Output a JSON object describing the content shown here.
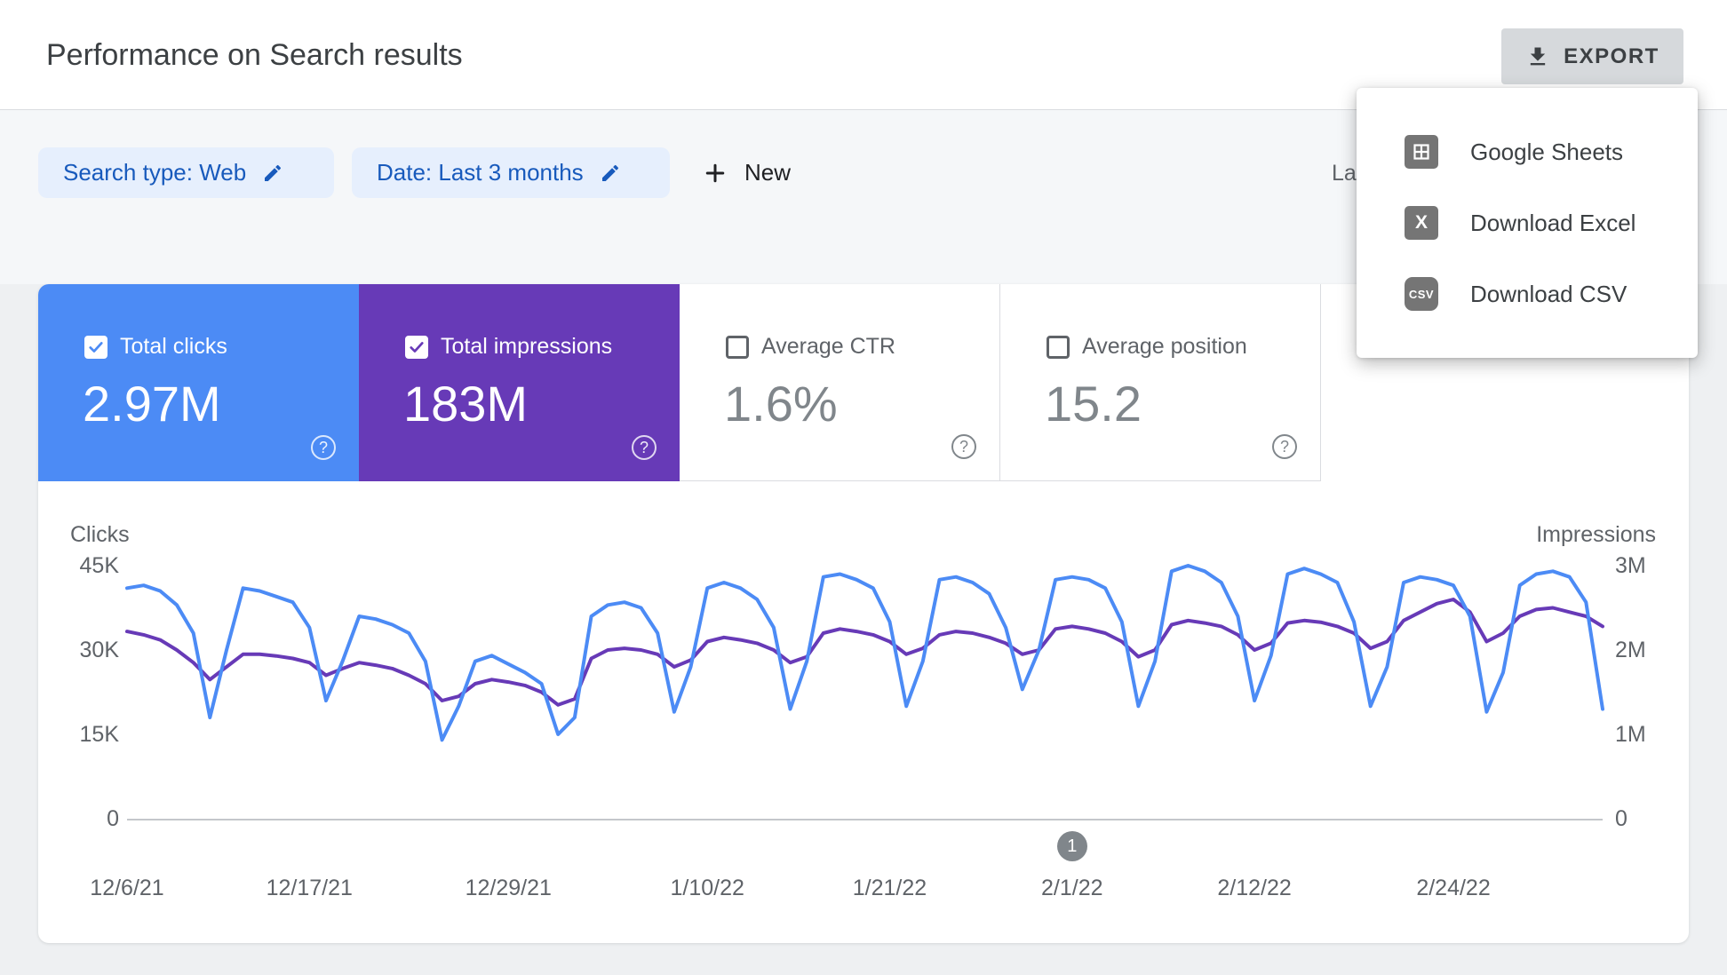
{
  "page": {
    "title": "Performance on Search results"
  },
  "toolbar": {
    "export_label": "EXPORT"
  },
  "filters": {
    "search_type_chip": "Search type: Web",
    "date_chip": "Date: Last 3 months",
    "new_button": "New",
    "last_updated_partial": "La"
  },
  "export_menu": {
    "items": [
      {
        "label": "Google Sheets",
        "icon": "google-sheets-icon",
        "glyph": ""
      },
      {
        "label": "Download Excel",
        "icon": "excel-icon",
        "glyph": "X"
      },
      {
        "label": "Download CSV",
        "icon": "csv-icon",
        "glyph": "CSV"
      }
    ]
  },
  "icons": {
    "help_glyph": "?"
  },
  "metric_cards": [
    {
      "label": "Total clicks",
      "value": "2.97M",
      "selected": true,
      "color": "#4c8bf5"
    },
    {
      "label": "Total impressions",
      "value": "183M",
      "selected": true,
      "color": "#673ab7"
    },
    {
      "label": "Average CTR",
      "value": "1.6%",
      "selected": false,
      "color": "#ffffff"
    },
    {
      "label": "Average position",
      "value": "15.2",
      "selected": false,
      "color": "#ffffff"
    }
  ],
  "chart_data": {
    "type": "line",
    "title": "",
    "grid": false,
    "legend_position": "none",
    "left_axis": {
      "title": "Clicks",
      "max": 45000,
      "ticks": [
        {
          "label": "45K",
          "value": 45000
        },
        {
          "label": "30K",
          "value": 30000
        },
        {
          "label": "15K",
          "value": 15000
        },
        {
          "label": "0",
          "value": 0
        }
      ]
    },
    "right_axis": {
      "title": "Impressions",
      "max": 3000000,
      "ticks": [
        {
          "label": "3M",
          "value": 3000000
        },
        {
          "label": "2M",
          "value": 2000000
        },
        {
          "label": "1M",
          "value": 1000000
        },
        {
          "label": "0",
          "value": 0
        }
      ]
    },
    "x_ticks": [
      {
        "label": "12/6/21",
        "index": 0
      },
      {
        "label": "12/17/21",
        "index": 11
      },
      {
        "label": "12/29/21",
        "index": 23
      },
      {
        "label": "1/10/22",
        "index": 35
      },
      {
        "label": "1/21/22",
        "index": 46
      },
      {
        "label": "2/1/22",
        "index": 57
      },
      {
        "label": "2/12/22",
        "index": 68
      },
      {
        "label": "2/24/22",
        "index": 80
      }
    ],
    "annotation": {
      "label": "1",
      "index": 57
    },
    "dates": [
      "12/6/21",
      "12/7/21",
      "12/8/21",
      "12/9/21",
      "12/10/21",
      "12/11/21",
      "12/12/21",
      "12/13/21",
      "12/14/21",
      "12/15/21",
      "12/16/21",
      "12/17/21",
      "12/18/21",
      "12/19/21",
      "12/20/21",
      "12/21/21",
      "12/22/21",
      "12/23/21",
      "12/24/21",
      "12/25/21",
      "12/26/21",
      "12/27/21",
      "12/28/21",
      "12/29/21",
      "12/30/21",
      "12/31/21",
      "1/1/22",
      "1/2/22",
      "1/3/22",
      "1/4/22",
      "1/5/22",
      "1/6/22",
      "1/7/22",
      "1/8/22",
      "1/9/22",
      "1/10/22",
      "1/11/22",
      "1/12/22",
      "1/13/22",
      "1/14/22",
      "1/15/22",
      "1/16/22",
      "1/17/22",
      "1/18/22",
      "1/19/22",
      "1/20/22",
      "1/21/22",
      "1/22/22",
      "1/23/22",
      "1/24/22",
      "1/25/22",
      "1/26/22",
      "1/27/22",
      "1/28/22",
      "1/29/22",
      "1/30/22",
      "1/31/22",
      "2/1/22",
      "2/2/22",
      "2/3/22",
      "2/4/22",
      "2/5/22",
      "2/6/22",
      "2/7/22",
      "2/8/22",
      "2/9/22",
      "2/10/22",
      "2/11/22",
      "2/12/22",
      "2/13/22",
      "2/14/22",
      "2/15/22",
      "2/16/22",
      "2/17/22",
      "2/18/22",
      "2/19/22",
      "2/20/22",
      "2/21/22",
      "2/22/22",
      "2/23/22",
      "2/24/22",
      "2/25/22",
      "2/26/22",
      "2/27/22",
      "2/28/22",
      "3/1/22",
      "3/2/22",
      "3/3/22",
      "3/4/22",
      "3/5/22"
    ],
    "series": [
      {
        "name": "Clicks",
        "axis": "left",
        "color": "#4c8bf5",
        "total": "2.97M",
        "values": [
          41000,
          41500,
          40500,
          38000,
          33000,
          18000,
          30000,
          41000,
          40500,
          39500,
          38500,
          34000,
          21000,
          28000,
          36000,
          35500,
          34500,
          33000,
          28000,
          14000,
          20000,
          28000,
          29000,
          27500,
          26000,
          24000,
          15000,
          18000,
          36000,
          38000,
          38500,
          37500,
          33000,
          19000,
          27000,
          41000,
          42000,
          41000,
          39000,
          34000,
          19500,
          28000,
          43000,
          43500,
          42500,
          41000,
          35000,
          20000,
          28000,
          42500,
          43000,
          42000,
          40000,
          34000,
          23000,
          30000,
          42500,
          43000,
          42500,
          41000,
          35000,
          20000,
          28000,
          44000,
          45000,
          44000,
          42000,
          36000,
          21000,
          29000,
          43500,
          44500,
          43500,
          42000,
          35000,
          20000,
          27000,
          42000,
          43000,
          42500,
          41500,
          36000,
          19000,
          26000,
          41500,
          43500,
          44000,
          43000,
          38500,
          19500
        ]
      },
      {
        "name": "Impressions",
        "axis": "right",
        "color": "#673ab7",
        "total": "183M",
        "values": [
          2220000,
          2180000,
          2120000,
          2000000,
          1850000,
          1650000,
          1800000,
          1950000,
          1950000,
          1930000,
          1900000,
          1850000,
          1700000,
          1780000,
          1850000,
          1820000,
          1780000,
          1700000,
          1600000,
          1400000,
          1450000,
          1600000,
          1650000,
          1620000,
          1580000,
          1500000,
          1350000,
          1420000,
          1900000,
          2000000,
          2020000,
          2000000,
          1950000,
          1800000,
          1880000,
          2100000,
          2150000,
          2120000,
          2080000,
          2000000,
          1850000,
          1920000,
          2200000,
          2250000,
          2220000,
          2180000,
          2100000,
          1950000,
          2020000,
          2180000,
          2220000,
          2200000,
          2150000,
          2080000,
          1950000,
          2000000,
          2250000,
          2280000,
          2250000,
          2200000,
          2100000,
          1920000,
          2000000,
          2300000,
          2350000,
          2320000,
          2280000,
          2180000,
          2000000,
          2080000,
          2320000,
          2350000,
          2330000,
          2280000,
          2200000,
          2020000,
          2100000,
          2350000,
          2450000,
          2550000,
          2600000,
          2450000,
          2100000,
          2200000,
          2400000,
          2480000,
          2500000,
          2450000,
          2400000,
          2280000
        ]
      }
    ]
  }
}
